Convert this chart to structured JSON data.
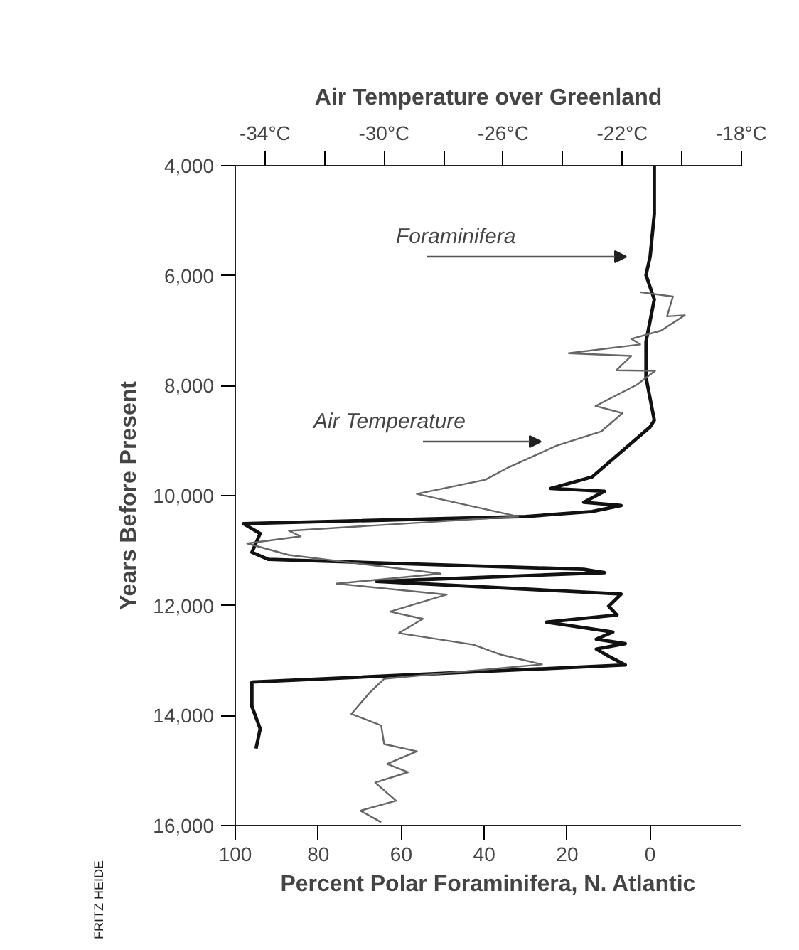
{
  "chart_data": {
    "type": "line",
    "title": "Air Temperature over Greenland",
    "xlabel": "Percent Polar Foraminifera, N. Atlantic",
    "ylabel": "Years Before Present",
    "xlim": [
      100,
      -22
    ],
    "xticks": [
      100,
      80,
      60,
      40,
      20,
      0
    ],
    "x2lim": [
      -35,
      -18
    ],
    "x2ticks": [
      {
        "value": -34,
        "label": "-34°C"
      },
      {
        "value": -32,
        "label": null
      },
      {
        "value": -30,
        "label": "-30°C"
      },
      {
        "value": -28,
        "label": null
      },
      {
        "value": -26,
        "label": "-26°C"
      },
      {
        "value": -24,
        "label": null
      },
      {
        "value": -22,
        "label": "-22°C"
      },
      {
        "value": -20,
        "label": null
      },
      {
        "value": -18,
        "label": "-18°C"
      }
    ],
    "ylim": [
      16000,
      4000
    ],
    "yticks": [
      {
        "value": 4000,
        "label": "4,000"
      },
      {
        "value": 6000,
        "label": "6,000"
      },
      {
        "value": 8000,
        "label": "8,000"
      },
      {
        "value": 10000,
        "label": "10,000"
      },
      {
        "value": 12000,
        "label": "12,000"
      },
      {
        "value": 14000,
        "label": "14,000"
      },
      {
        "value": 16000,
        "label": "16,000"
      }
    ],
    "grid": false,
    "marker": "none",
    "line_style": "solid",
    "series": [
      {
        "color": "#111111",
        "x": [
          -1,
          -1,
          0,
          1,
          -1,
          1,
          1,
          0,
          -1,
          0,
          14,
          24,
          11,
          16,
          7,
          14,
          30,
          98,
          94,
          96,
          92,
          16,
          11,
          66,
          7,
          10,
          8,
          25,
          9,
          13,
          6,
          13,
          10,
          6,
          96,
          96,
          94,
          95
        ],
        "values": [
          4000,
          4880,
          5650,
          5990,
          6430,
          7200,
          7850,
          8240,
          8630,
          8750,
          9660,
          9870,
          9920,
          10120,
          10180,
          10290,
          10380,
          10510,
          10690,
          11030,
          11160,
          11340,
          11400,
          11560,
          11790,
          12010,
          12170,
          12300,
          12480,
          12610,
          12690,
          12790,
          12920,
          13080,
          13390,
          13830,
          14240,
          14600
        ]
      },
      {
        "color": "#666666",
        "axis": "x2",
        "x": [
          -21.4,
          -20.3,
          -20.5,
          -19.9,
          -20.7,
          -21.7,
          -21.4,
          -23.8,
          -21.7,
          -22.2,
          -20.9,
          -21.5,
          -22.9,
          -22.0,
          -22.7,
          -24.2,
          -25.8,
          -26.6,
          -28.9,
          -25.5,
          -33.2,
          -32.8,
          -34.6,
          -33.2,
          -28.1,
          -31.6,
          -27.9,
          -29.8,
          -28.7,
          -29.5,
          -27.0,
          -26.1,
          -24.7,
          -30.0,
          -30.5,
          -31.1,
          -30.1,
          -30.0,
          -28.9,
          -29.9,
          -29.2,
          -30.3,
          -29.6,
          -30.8,
          -30.1
        ],
        "values": [
          6300,
          6380,
          6740,
          6720,
          7000,
          7150,
          7250,
          7410,
          7460,
          7720,
          7730,
          7980,
          8370,
          8500,
          8830,
          9090,
          9480,
          9710,
          9970,
          10380,
          10640,
          10740,
          10870,
          11080,
          11420,
          11600,
          11800,
          12110,
          12240,
          12500,
          12710,
          12890,
          13070,
          13330,
          13590,
          13970,
          14180,
          14520,
          14650,
          14880,
          15030,
          15220,
          15550,
          15730,
          15940
        ]
      }
    ],
    "annotations": [
      "Foraminifera",
      "Air Temperature",
      "FRITZ HEIDE"
    ]
  }
}
